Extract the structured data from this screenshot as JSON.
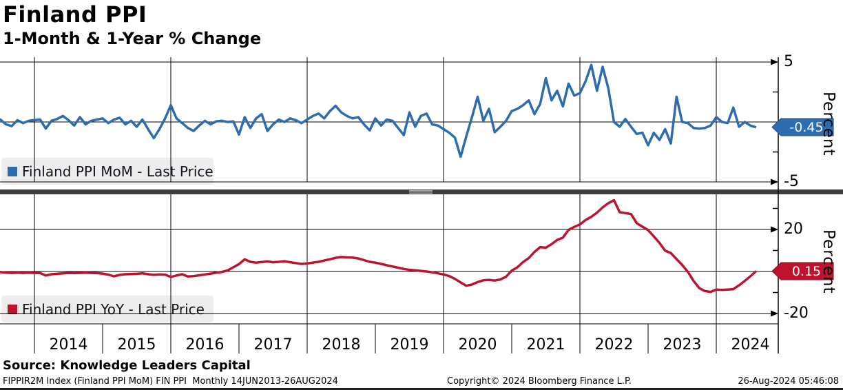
{
  "header": {
    "title": "Finland PPI",
    "subtitle": "1-Month & 1-Year % Change"
  },
  "top_panel": {
    "legend": "Finland PPI MoM - Last Price",
    "axis_label": "Percent",
    "tick_high": "5",
    "tick_low": "-5",
    "price_tag": "-0.45"
  },
  "bottom_panel": {
    "legend": "Finland PPI YoY - Last Price",
    "axis_label": "Percent",
    "tick_high": "20",
    "tick_low": "-20",
    "price_tag": "0.15"
  },
  "x_axis": {
    "years": [
      "2014",
      "2015",
      "2016",
      "2017",
      "2018",
      "2019",
      "2020",
      "2021",
      "2022",
      "2023",
      "2024"
    ]
  },
  "colors": {
    "mom_blue": "#2e6cb0",
    "yoy_red": "#bd132f",
    "grid": "#000000",
    "divider": "#3d3d3d",
    "legend_bg": "#ececec"
  },
  "footer": {
    "source": "Source: Knowledge Leaders Capital",
    "index_info": "FIPPIR2M Index (Finland PPI MoM) FIN PPI  Monthly 14JUN2013-26AUG2024",
    "copyright": "Copyright© 2024 Bloomberg Finance L.P.",
    "datetime": "26-Aug-2024 05:46:08"
  },
  "chart_data": [
    {
      "type": "line",
      "name": "Finland PPI MoM - Last Price",
      "panel": "top",
      "color": "#2e6cb0",
      "unit": "percent",
      "x_start": "2013-06",
      "x_end": "2024-08",
      "x_freq": "monthly",
      "ytick_interval": 2.5,
      "ylim_labeled": [
        -5,
        5
      ],
      "last_price": -0.45,
      "values": [
        0.0,
        0.2,
        -0.2,
        -0.35,
        0.15,
        -0.1,
        0.1,
        0.15,
        0.2,
        -0.55,
        0.1,
        0.25,
        0.5,
        0.15,
        -0.3,
        0.4,
        -0.2,
        0.1,
        0.2,
        0.3,
        -0.1,
        0.2,
        0.35,
        -0.2,
        0.1,
        -0.4,
        0.2,
        -0.6,
        -1.35,
        -0.6,
        0.3,
        1.4,
        0.3,
        -0.1,
        -0.5,
        -0.75,
        -0.3,
        0.1,
        -0.2,
        0.05,
        0.1,
        0.0,
        0.05,
        -1.05,
        0.4,
        -0.5,
        0.3,
        0.65,
        -0.75,
        -0.2,
        0.2,
        0.0,
        0.3,
        0.15,
        -0.1,
        0.2,
        0.5,
        0.7,
        0.3,
        0.9,
        1.35,
        0.8,
        0.5,
        0.3,
        0.4,
        -0.2,
        -0.7,
        0.3,
        -0.3,
        0.2,
        0.1,
        -0.5,
        -1.1,
        0.8,
        -0.4,
        0.5,
        0.7,
        -0.2,
        -0.3,
        -0.6,
        -0.9,
        -1.3,
        -2.9,
        -1.2,
        0.4,
        2.1,
        0.1,
        1.1,
        -0.85,
        -0.4,
        0.1,
        0.9,
        1.1,
        1.4,
        1.8,
        0.65,
        1.5,
        3.65,
        1.8,
        2.6,
        1.3,
        3.2,
        2.2,
        2.4,
        3.4,
        4.76,
        2.6,
        4.6,
        2.8,
        0.0,
        -0.4,
        0.25,
        -0.4,
        -1.0,
        -0.9,
        -1.95,
        -0.9,
        -1.5,
        -0.6,
        -1.8,
        2.1,
        0.0,
        -0.1,
        -0.5,
        -0.55,
        -0.5,
        -0.3,
        0.4,
        0.0,
        -0.1,
        1.2,
        -0.4,
        0.0,
        -0.3,
        -0.45
      ]
    },
    {
      "type": "line",
      "name": "Finland PPI YoY - Last Price",
      "panel": "bottom",
      "color": "#bd132f",
      "unit": "percent",
      "x_start": "2013-06",
      "x_end": "2024-08",
      "x_freq": "monthly",
      "ytick_interval": 10,
      "ylim_labeled": [
        -20,
        20
      ],
      "last_price": 0.15,
      "values": [
        0.3,
        -0.3,
        -0.6,
        -0.7,
        -0.6,
        -0.7,
        -0.6,
        -0.7,
        -0.8,
        -1.9,
        -1.3,
        -1.1,
        -0.9,
        -0.7,
        -0.8,
        -0.7,
        -0.6,
        -0.7,
        -0.8,
        -1.0,
        -1.5,
        -2.3,
        -1.6,
        -1.3,
        -1.2,
        -1.1,
        -0.9,
        -1.3,
        -1.6,
        -1.4,
        -1.5,
        -2.6,
        -1.9,
        -1.3,
        -2.4,
        -2.2,
        -1.8,
        -1.4,
        -1.0,
        -0.6,
        -0.2,
        0.5,
        2.0,
        3.5,
        5.8,
        4.6,
        4.2,
        4.5,
        4.8,
        4.4,
        4.6,
        4.9,
        4.4,
        4.0,
        3.6,
        3.8,
        4.2,
        4.6,
        5.2,
        5.8,
        6.5,
        6.9,
        6.7,
        6.6,
        6.2,
        5.4,
        4.6,
        4.2,
        3.6,
        3.0,
        2.4,
        1.8,
        1.2,
        0.8,
        0.6,
        0.3,
        0.0,
        -0.4,
        -0.9,
        -1.4,
        -2.2,
        -3.5,
        -5.2,
        -6.8,
        -6.2,
        -5.0,
        -4.2,
        -4.0,
        -4.3,
        -3.8,
        -2.5,
        0.4,
        2.0,
        4.5,
        6.4,
        9.3,
        11.6,
        11.3,
        13.0,
        15.0,
        16.1,
        19.8,
        21.2,
        22.4,
        24.5,
        26.0,
        28.0,
        30.5,
        32.5,
        33.9,
        28.2,
        27.8,
        27.3,
        23.0,
        21.3,
        19.7,
        16.7,
        13.6,
        9.9,
        8.8,
        5.9,
        3.1,
        -0.2,
        -4.5,
        -7.9,
        -9.3,
        -9.7,
        -8.6,
        -8.8,
        -8.6,
        -8.4,
        -6.6,
        -4.5,
        -2.3,
        0.15
      ]
    }
  ]
}
